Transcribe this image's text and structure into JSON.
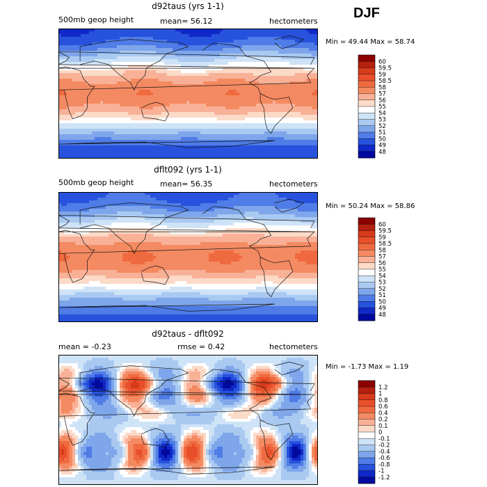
{
  "season": "DJF",
  "panels": [
    {
      "title": "d92taus (yrs 1-1)",
      "left": "500mb geop height",
      "mid": "mean=  56.12",
      "right": "hectometers",
      "minmax": "Min =  49.44 Max =  58.74",
      "kind": "field",
      "colorbar": {
        "labels": [
          "60",
          "59.5",
          "59",
          "58.5",
          "58",
          "57",
          "56",
          "55",
          "54",
          "53",
          "52",
          "51",
          "50",
          "49",
          "48"
        ],
        "colors": [
          "#8b0000",
          "#b5200f",
          "#d83a1c",
          "#e8502b",
          "#f06a3f",
          "#f48a62",
          "#f8b197",
          "#fbdac8",
          "#ffffff",
          "#cfe3f7",
          "#a9c9f1",
          "#7fa6ea",
          "#4f7ce6",
          "#2752dd",
          "#1028c8",
          "#000a9c"
        ]
      }
    },
    {
      "title": "dflt092 (yrs 1-1)",
      "left": "500mb geop height",
      "mid": "mean=  56.35",
      "right": "hectometers",
      "minmax": "Min =  50.24 Max =  58.86",
      "kind": "field",
      "colorbar": {
        "labels": [
          "60",
          "59.5",
          "59",
          "58.5",
          "58",
          "57",
          "56",
          "55",
          "54",
          "53",
          "52",
          "51",
          "50",
          "49",
          "48"
        ],
        "colors": [
          "#8b0000",
          "#b5200f",
          "#d83a1c",
          "#e8502b",
          "#f06a3f",
          "#f48a62",
          "#f8b197",
          "#fbdac8",
          "#ffffff",
          "#cfe3f7",
          "#a9c9f1",
          "#7fa6ea",
          "#4f7ce6",
          "#2752dd",
          "#1028c8",
          "#000a9c"
        ]
      }
    },
    {
      "title": "d92taus - dflt092",
      "left": "mean =   -0.23",
      "mid": "rmse =    0.42",
      "right": "hectometers",
      "minmax": "Min =  -1.73 Max =    1.19",
      "kind": "diff",
      "colorbar": {
        "labels": [
          "1.2",
          "1",
          "0.8",
          "0.6",
          "0.4",
          "0.2",
          "0.1",
          "0",
          "-0.1",
          "-0.2",
          "-0.4",
          "-0.6",
          "-0.8",
          "-1",
          "-1.2"
        ],
        "colors": [
          "#8b0000",
          "#b5200f",
          "#d83a1c",
          "#e8502b",
          "#f06a3f",
          "#f48a62",
          "#f8b197",
          "#fbdac8",
          "#ffffff",
          "#cfe3f7",
          "#a9c9f1",
          "#7fa6ea",
          "#4f7ce6",
          "#2752dd",
          "#1028c8",
          "#000a9c"
        ]
      }
    }
  ]
}
